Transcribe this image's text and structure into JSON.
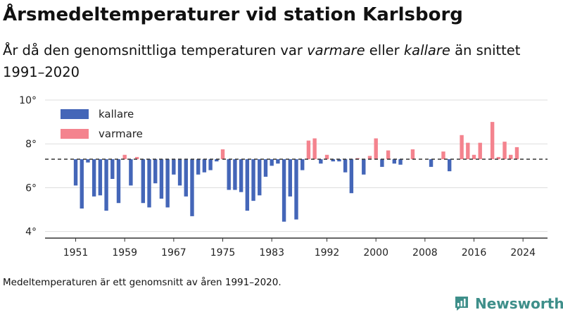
{
  "title": "Årsmedeltemperaturer vid station Karlsborg",
  "subtitle": {
    "part1": "År då den genomsnittliga temperaturen var ",
    "warm_word": "varmare",
    "part2": " eller ",
    "cold_word": "kallare",
    "part3": " än snittet 1991–2020"
  },
  "footnote": "Medeltemperaturen är ett genomsnitt av åren 1991–2020.",
  "brand": "Newsworthy",
  "colors": {
    "cold": "#4466b8",
    "warm": "#f4838e",
    "reference_line": "#333333",
    "grid": "#dddddd",
    "brand": "#3e8f8a"
  },
  "chart_data": {
    "type": "bar",
    "baseline": 7.3,
    "baseline_style": "dashed",
    "ylim": [
      3.7,
      10
    ],
    "y_ticks": [
      4,
      6,
      8,
      10
    ],
    "y_tick_labels": [
      "4°",
      "6°",
      "8°",
      "10°"
    ],
    "xlim": [
      1946,
      2028
    ],
    "x_ticks": [
      1951,
      1959,
      1967,
      1975,
      1983,
      1992,
      2000,
      2008,
      2016,
      2024
    ],
    "x_tick_labels": [
      "1951",
      "1959",
      "1967",
      "1975",
      "1983",
      "1992",
      "2000",
      "2008",
      "2016",
      "2024"
    ],
    "legend": [
      {
        "key": "cold",
        "label": "kallare"
      },
      {
        "key": "warm",
        "label": "varmare"
      }
    ],
    "legend_position": "top-left",
    "grid": true,
    "x": [
      1951,
      1952,
      1953,
      1954,
      1955,
      1956,
      1957,
      1958,
      1959,
      1960,
      1961,
      1962,
      1963,
      1964,
      1965,
      1966,
      1967,
      1968,
      1969,
      1970,
      1971,
      1972,
      1973,
      1974,
      1975,
      1976,
      1977,
      1978,
      1979,
      1980,
      1981,
      1982,
      1983,
      1984,
      1985,
      1986,
      1987,
      1988,
      1989,
      1990,
      1991,
      1992,
      1993,
      1994,
      1995,
      1996,
      1997,
      1998,
      1999,
      2000,
      2001,
      2002,
      2003,
      2004,
      2005,
      2006,
      2007,
      2008,
      2009,
      2010,
      2011,
      2012,
      2013,
      2014,
      2015,
      2016,
      2017,
      2018,
      2019,
      2020,
      2021,
      2022,
      2023,
      2024
    ],
    "values": [
      6.1,
      5.05,
      7.15,
      5.6,
      5.65,
      4.95,
      6.4,
      5.3,
      7.5,
      6.1,
      7.4,
      5.3,
      5.1,
      6.2,
      5.5,
      5.1,
      6.6,
      6.1,
      5.6,
      4.7,
      6.6,
      6.7,
      6.8,
      7.2,
      7.75,
      5.9,
      5.9,
      5.8,
      4.95,
      5.4,
      5.65,
      6.5,
      7.0,
      7.1,
      4.45,
      5.6,
      4.55,
      6.8,
      8.15,
      8.25,
      7.1,
      7.5,
      7.2,
      7.2,
      6.7,
      5.75,
      7.35,
      6.6,
      7.45,
      8.25,
      6.95,
      7.7,
      7.1,
      7.05,
      7.3,
      7.75,
      7.3,
      7.3,
      6.95,
      7.3,
      7.65,
      6.75,
      7.3,
      8.4,
      8.05,
      7.5,
      8.05,
      7.3,
      9.0,
      7.4,
      8.1,
      7.5,
      7.85,
      7.3
    ]
  }
}
